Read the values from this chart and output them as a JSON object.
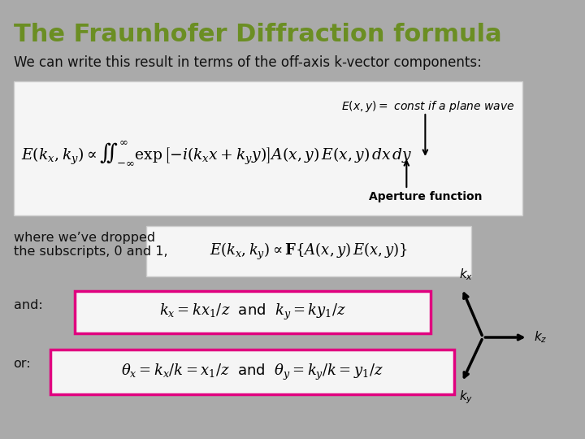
{
  "bg_color": "#aaaaaa",
  "title": "The Fraunhofer Diffraction formula",
  "title_color": "#6b8e23",
  "subtitle": "We can write this result in terms of the off-axis k-vector components:",
  "subtitle_color": "#111111",
  "box1_bg": "#f5f5f5",
  "box1_formula": "$E\\left(k_x, k_y\\right) \\propto \\int\\!\\!\\int_{-\\infty}^{\\infty} \\exp\\left[-i\\left(k_x x + k_y y\\right)\\right] A(x,y)\\,E(x,y)\\,dx\\,dy$",
  "box1_annotation1": "$E(x,y) =$ const if a plane wave",
  "box1_annotation2": "Aperture function",
  "box2_bg": "#f5f5f5",
  "box2_formula": "$E\\left(k_x, k_y\\right) \\propto \\mathbf{F}\\left\\{A(x,y)\\,E(x,y)\\right\\}$",
  "where_text": "where we’ve dropped\nthe subscripts, 0 and 1,",
  "and_label": "and:",
  "and_formula": "$k_x = kx_1/z$  and  $k_y = ky_1/z$",
  "or_label": "or:",
  "or_formula": "$\\theta_x = k_x/k = x_1/z$  and  $\\theta_y = k_y/k = y_1/z$",
  "box_border_color": "#e0007f",
  "text_color": "#111111",
  "axis_color": "#111111"
}
